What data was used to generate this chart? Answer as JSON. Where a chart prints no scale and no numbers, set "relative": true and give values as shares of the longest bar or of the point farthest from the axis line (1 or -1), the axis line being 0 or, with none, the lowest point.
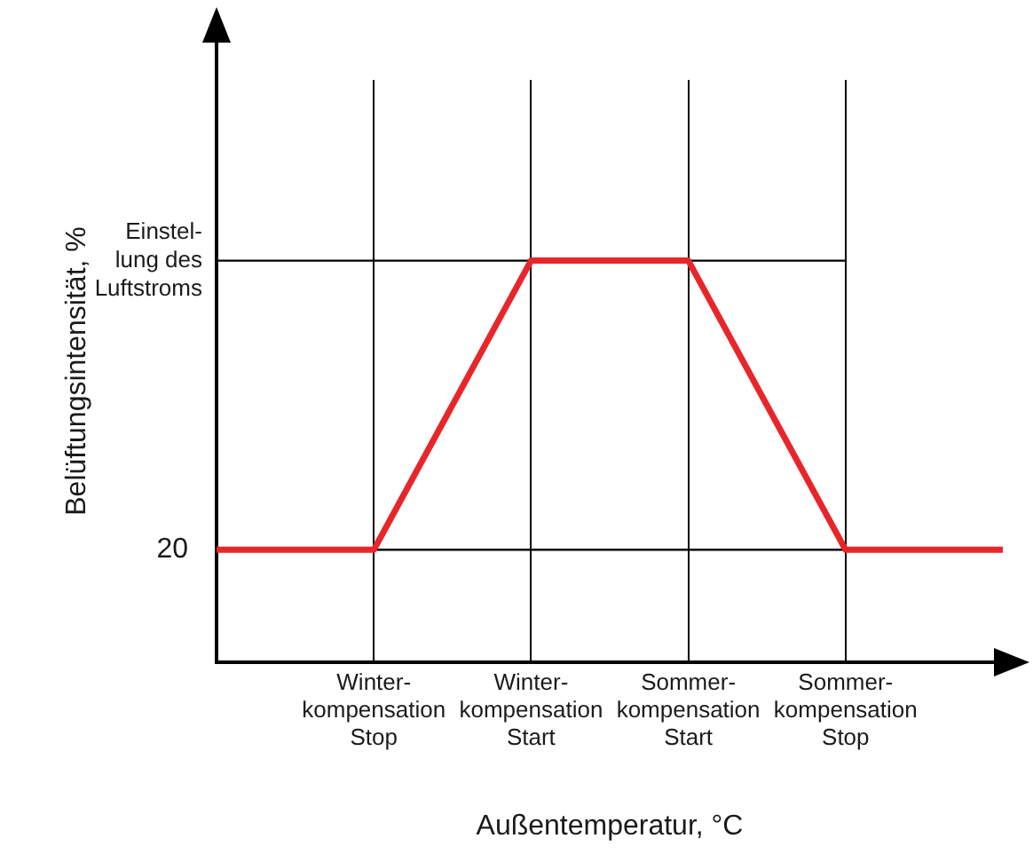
{
  "chart_data": {
    "type": "line",
    "relative": true,
    "ylabel": "Belüftungsintensität, %",
    "xlabel": "Außentemperatur, °C",
    "categories": [
      null,
      "Winter-\nkompensation\nStop",
      "Winter-\nkompensation\nStart",
      "Sommer-\nkompensation\nStart",
      "Sommer-\nkompensation\nStop",
      null
    ],
    "series": [
      {
        "color": "#e8262a",
        "values": [
          0.28,
          0.28,
          1,
          1,
          0.28,
          0.28
        ]
      }
    ],
    "ref_lines": [
      {
        "axis": "y",
        "value": 0.28,
        "color": "#000000"
      },
      {
        "axis": "y",
        "value": 1,
        "color": "#000000"
      }
    ],
    "annotations": [
      "20",
      "Einstel-\nlung des\nLuftstroms"
    ],
    "grid": "x",
    "legend": false,
    "marker": "none",
    "line_style": "solid"
  }
}
